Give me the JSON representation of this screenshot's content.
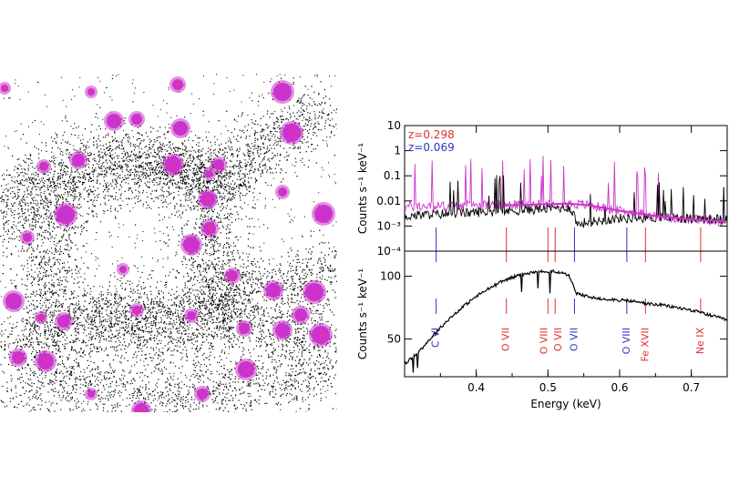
{
  "chart_data": [
    {
      "type": "image",
      "description_colors": {
        "points": "#000000",
        "halos": "#cc33cc",
        "cores": "#ff3366"
      }
    },
    {
      "type": "line",
      "panel": "top",
      "ylabel": "Counts s⁻¹ keV⁻¹",
      "yscale": "log",
      "ylim": [
        0.0001,
        10
      ],
      "yticks": [
        {
          "v": 10,
          "label": "10"
        },
        {
          "v": 1,
          "label": "1"
        },
        {
          "v": 0.1,
          "label": "0.1"
        },
        {
          "v": 0.01,
          "label": "0.01"
        },
        {
          "v": 0.001,
          "label": "10⁻³"
        },
        {
          "v": 0.0001,
          "label": "10⁻⁴"
        }
      ],
      "xlim": [
        0.3,
        0.75
      ],
      "legend": [
        {
          "label": "z=0.298",
          "color": "#e0302f"
        },
        {
          "label": "z=0.069",
          "color": "#2f34c8"
        }
      ],
      "series": [
        {
          "color": "#cc33cc",
          "x": [
            0.3,
            0.35,
            0.4,
            0.45,
            0.5,
            0.53,
            0.55,
            0.6,
            0.65,
            0.7,
            0.75
          ],
          "y": [
            0.006,
            0.0062,
            0.0065,
            0.0068,
            0.0075,
            0.0078,
            0.007,
            0.004,
            0.0025,
            0.0018,
            0.0015
          ]
        },
        {
          "color": "#000000",
          "x": [
            0.3,
            0.35,
            0.4,
            0.45,
            0.5,
            0.53,
            0.54,
            0.6,
            0.65,
            0.7,
            0.75
          ],
          "y": [
            0.0025,
            0.003,
            0.0035,
            0.004,
            0.005,
            0.0055,
            0.0012,
            0.002,
            0.0022,
            0.002,
            0.0018
          ]
        }
      ]
    },
    {
      "type": "line",
      "panel": "bottom",
      "xlabel": "Energy (keV)",
      "ylabel": "Counts s⁻¹ keV⁻¹",
      "xlim": [
        0.3,
        0.75
      ],
      "ylim": [
        20,
        120
      ],
      "xticks": [
        {
          "v": 0.4,
          "label": "0.4"
        },
        {
          "v": 0.5,
          "label": "0.5"
        },
        {
          "v": 0.6,
          "label": "0.6"
        },
        {
          "v": 0.7,
          "label": "0.7"
        }
      ],
      "yticks": [
        {
          "v": 50,
          "label": "50"
        },
        {
          "v": 100,
          "label": "100"
        }
      ],
      "series": [
        {
          "color": "#000000",
          "x": [
            0.3,
            0.32,
            0.34,
            0.36,
            0.38,
            0.4,
            0.42,
            0.44,
            0.46,
            0.48,
            0.5,
            0.52,
            0.53,
            0.54,
            0.56,
            0.58,
            0.6,
            0.62,
            0.64,
            0.66,
            0.68,
            0.7,
            0.72,
            0.75
          ],
          "y": [
            30,
            40,
            53,
            65,
            75,
            84,
            91,
            97,
            101,
            103,
            104,
            103,
            100,
            86,
            83,
            82,
            81,
            80,
            78,
            77,
            75,
            73,
            70,
            65
          ]
        }
      ],
      "lines": [
        {
          "energy": 0.344,
          "label": "C VI",
          "color": "#2f34c8"
        },
        {
          "energy": 0.442,
          "label": "O VII",
          "color": "#e0302f"
        },
        {
          "energy": 0.5,
          "label": "O VIII",
          "color": "#e0302f"
        },
        {
          "energy": 0.51,
          "label": "O VII",
          "color": "#e0302f"
        },
        {
          "energy": 0.537,
          "label": "O VII",
          "color": "#2f34c8"
        },
        {
          "energy": 0.61,
          "label": "O VIII",
          "color": "#2f34c8"
        },
        {
          "energy": 0.636,
          "label": "Fe XVII",
          "color": "#e0302f"
        },
        {
          "energy": 0.713,
          "label": "Ne IX",
          "color": "#e0302f"
        }
      ]
    }
  ]
}
